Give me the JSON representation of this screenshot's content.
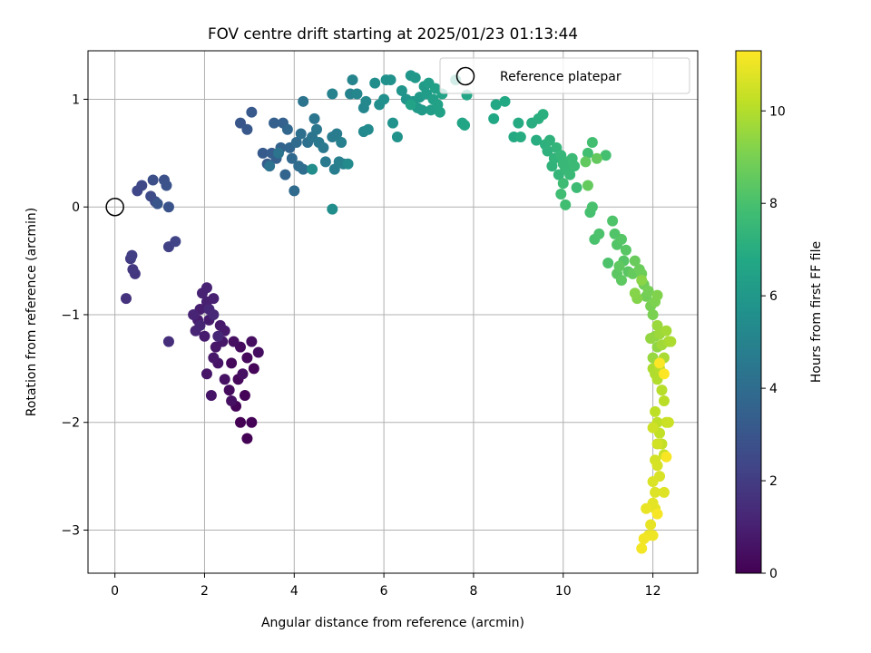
{
  "chart_data": {
    "type": "scatter",
    "title": "FOV centre drift starting at 2025/01/23 01:13:44",
    "xlabel": "Angular distance from reference (arcmin)",
    "ylabel": "Rotation from reference (arcmin)",
    "xlim": [
      -0.6,
      13.0
    ],
    "ylim": [
      -3.4,
      1.45
    ],
    "xticks": [
      0,
      2,
      4,
      6,
      8,
      10,
      12
    ],
    "yticks": [
      -3,
      -2,
      -1,
      0,
      1
    ],
    "grid": true,
    "colormap": "viridis",
    "colorbar": {
      "label": "Hours from first FF file",
      "range": [
        0,
        11.3
      ],
      "ticks": [
        0,
        2,
        4,
        6,
        8,
        10
      ]
    },
    "legend": {
      "position": "top-right",
      "entries": [
        {
          "label": "Reference platepar",
          "marker": "open-circle"
        }
      ]
    },
    "reference_point": {
      "x": 0,
      "y": 0
    },
    "segments": [
      {
        "hours": [
          0.0,
          0.6
        ],
        "points": [
          [
            2.8,
            -2.0
          ],
          [
            2.95,
            -2.15
          ],
          [
            3.05,
            -2.0
          ],
          [
            2.7,
            -1.85
          ],
          [
            2.9,
            -1.75
          ],
          [
            3.1,
            -1.5
          ],
          [
            2.75,
            -1.6
          ],
          [
            2.6,
            -1.45
          ],
          [
            2.95,
            -1.4
          ],
          [
            2.55,
            -1.7
          ],
          [
            2.8,
            -1.3
          ],
          [
            3.2,
            -1.35
          ],
          [
            3.05,
            -1.25
          ],
          [
            2.65,
            -1.25
          ],
          [
            2.85,
            -1.55
          ],
          [
            2.6,
            -1.8
          ],
          [
            2.45,
            -1.6
          ],
          [
            2.3,
            -1.45
          ]
        ]
      },
      {
        "hours": [
          0.6,
          1.3
        ],
        "points": [
          [
            2.15,
            -1.75
          ],
          [
            2.05,
            -1.55
          ],
          [
            2.25,
            -1.3
          ],
          [
            2.4,
            -1.25
          ],
          [
            2.2,
            -1.4
          ],
          [
            2.35,
            -1.1
          ],
          [
            2.45,
            -1.15
          ],
          [
            2.1,
            -1.05
          ],
          [
            2.0,
            -1.2
          ],
          [
            1.85,
            -1.05
          ],
          [
            1.9,
            -0.95
          ],
          [
            2.05,
            -0.88
          ],
          [
            2.2,
            -0.85
          ],
          [
            1.95,
            -0.8
          ],
          [
            2.05,
            -0.75
          ],
          [
            1.75,
            -1.0
          ],
          [
            1.8,
            -1.15
          ],
          [
            1.9,
            -1.1
          ],
          [
            2.1,
            -0.95
          ],
          [
            2.3,
            -1.2
          ],
          [
            2.2,
            -1.0
          ]
        ]
      },
      {
        "hours": [
          1.5,
          2.3
        ],
        "points": [
          [
            1.2,
            -1.25
          ],
          [
            0.25,
            -0.85
          ],
          [
            0.45,
            -0.62
          ],
          [
            0.4,
            -0.58
          ],
          [
            0.35,
            -0.48
          ],
          [
            0.38,
            -0.45
          ],
          [
            1.2,
            -0.37
          ],
          [
            1.35,
            -0.32
          ]
        ]
      },
      {
        "hours": [
          2.4,
          3.0
        ],
        "points": [
          [
            0.5,
            0.15
          ],
          [
            0.6,
            0.2
          ],
          [
            0.8,
            0.1
          ],
          [
            0.9,
            0.05
          ],
          [
            0.85,
            0.25
          ],
          [
            1.1,
            0.25
          ],
          [
            1.15,
            0.2
          ],
          [
            1.2,
            0.0
          ],
          [
            0.95,
            0.03
          ]
        ]
      },
      {
        "hours": [
          3.0,
          4.3
        ],
        "points": [
          [
            2.8,
            0.78
          ],
          [
            2.95,
            0.72
          ],
          [
            3.05,
            0.88
          ],
          [
            3.3,
            0.5
          ],
          [
            3.4,
            0.4
          ],
          [
            3.5,
            0.5
          ],
          [
            3.6,
            0.45
          ],
          [
            3.55,
            0.78
          ],
          [
            3.75,
            0.78
          ],
          [
            3.7,
            0.55
          ],
          [
            3.8,
            0.3
          ],
          [
            3.9,
            0.55
          ],
          [
            3.85,
            0.72
          ],
          [
            3.95,
            0.45
          ],
          [
            4.0,
            0.15
          ],
          [
            4.05,
            0.6
          ],
          [
            4.1,
            0.38
          ],
          [
            4.2,
            0.35
          ],
          [
            4.15,
            0.68
          ],
          [
            4.3,
            0.6
          ],
          [
            3.45,
            0.38
          ],
          [
            3.65,
            0.5
          ]
        ]
      },
      {
        "hours": [
          4.3,
          5.5
        ],
        "points": [
          [
            4.2,
            0.98
          ],
          [
            4.4,
            0.65
          ],
          [
            4.45,
            0.82
          ],
          [
            4.5,
            0.72
          ],
          [
            4.55,
            0.6
          ],
          [
            4.65,
            0.55
          ],
          [
            4.7,
            0.42
          ],
          [
            4.85,
            0.65
          ],
          [
            4.95,
            0.68
          ],
          [
            4.9,
            0.35
          ],
          [
            5.0,
            0.42
          ],
          [
            5.05,
            0.6
          ],
          [
            5.1,
            0.4
          ],
          [
            4.85,
            1.05
          ],
          [
            5.25,
            1.05
          ],
          [
            5.3,
            1.18
          ],
          [
            5.4,
            1.05
          ],
          [
            5.55,
            0.92
          ],
          [
            5.6,
            0.98
          ],
          [
            5.55,
            0.7
          ],
          [
            5.65,
            0.72
          ],
          [
            5.2,
            0.4
          ],
          [
            4.4,
            0.35
          ],
          [
            4.85,
            -0.02
          ]
        ]
      },
      {
        "hours": [
          5.5,
          6.5
        ],
        "points": [
          [
            5.8,
            1.15
          ],
          [
            5.9,
            0.95
          ],
          [
            6.0,
            1.0
          ],
          [
            6.05,
            1.18
          ],
          [
            6.15,
            1.18
          ],
          [
            6.2,
            0.78
          ],
          [
            6.3,
            0.65
          ],
          [
            6.4,
            1.08
          ],
          [
            6.5,
            1.0
          ],
          [
            6.6,
            1.22
          ],
          [
            6.65,
            0.98
          ],
          [
            6.7,
            1.2
          ],
          [
            6.75,
            0.92
          ],
          [
            6.8,
            1.02
          ],
          [
            6.85,
            0.9
          ],
          [
            6.9,
            1.12
          ],
          [
            6.95,
            1.05
          ],
          [
            7.0,
            1.15
          ],
          [
            7.05,
            0.9
          ],
          [
            7.1,
            1.0
          ],
          [
            7.15,
            1.1
          ],
          [
            7.2,
            0.95
          ],
          [
            7.25,
            0.88
          ],
          [
            6.6,
            0.95
          ]
        ]
      },
      {
        "hours": [
          6.5,
          7.5
        ],
        "points": [
          [
            7.3,
            1.05
          ],
          [
            7.6,
            1.18
          ],
          [
            7.75,
            0.78
          ],
          [
            7.8,
            0.76
          ],
          [
            7.85,
            1.04
          ],
          [
            8.45,
            0.82
          ],
          [
            8.5,
            0.95
          ],
          [
            8.7,
            0.98
          ],
          [
            8.9,
            0.65
          ],
          [
            9.0,
            0.78
          ],
          [
            9.05,
            0.65
          ],
          [
            9.3,
            0.78
          ],
          [
            9.4,
            0.62
          ],
          [
            9.45,
            0.82
          ],
          [
            9.55,
            0.86
          ],
          [
            9.6,
            0.58
          ],
          [
            9.65,
            0.52
          ],
          [
            9.7,
            0.62
          ],
          [
            9.75,
            0.38
          ],
          [
            9.8,
            0.45
          ],
          [
            9.85,
            0.55
          ],
          [
            9.9,
            0.3
          ],
          [
            9.95,
            0.48
          ],
          [
            10.0,
            0.4
          ]
        ]
      },
      {
        "hours": [
          7.5,
          8.6
        ],
        "points": [
          [
            10.05,
            0.35
          ],
          [
            10.1,
            0.42
          ],
          [
            10.15,
            0.3
          ],
          [
            10.2,
            0.45
          ],
          [
            10.25,
            0.38
          ],
          [
            10.3,
            0.18
          ],
          [
            10.0,
            0.22
          ],
          [
            9.95,
            0.12
          ],
          [
            10.05,
            0.02
          ],
          [
            10.55,
            0.5
          ],
          [
            10.65,
            0.6
          ],
          [
            10.95,
            0.48
          ],
          [
            10.6,
            -0.05
          ],
          [
            10.65,
            0.0
          ],
          [
            10.7,
            -0.3
          ],
          [
            10.8,
            -0.25
          ],
          [
            11.0,
            -0.52
          ],
          [
            11.1,
            -0.13
          ],
          [
            11.15,
            -0.25
          ],
          [
            11.2,
            -0.35
          ],
          [
            11.3,
            -0.3
          ],
          [
            11.35,
            -0.5
          ],
          [
            11.4,
            -0.4
          ],
          [
            11.45,
            -0.6
          ],
          [
            11.2,
            -0.62
          ],
          [
            11.3,
            -0.68
          ],
          [
            11.25,
            -0.55
          ],
          [
            10.5,
            0.42
          ],
          [
            10.75,
            0.45
          ],
          [
            10.55,
            0.2
          ]
        ]
      },
      {
        "hours": [
          8.6,
          9.9
        ],
        "points": [
          [
            11.55,
            -0.62
          ],
          [
            11.6,
            -0.5
          ],
          [
            11.7,
            -0.58
          ],
          [
            11.75,
            -0.62
          ],
          [
            11.8,
            -0.72
          ],
          [
            11.85,
            -0.83
          ],
          [
            11.9,
            -0.78
          ],
          [
            11.95,
            -0.92
          ],
          [
            12.0,
            -1.0
          ],
          [
            12.05,
            -0.88
          ],
          [
            12.1,
            -0.82
          ],
          [
            11.65,
            -0.85
          ],
          [
            11.6,
            -0.8
          ],
          [
            11.75,
            -0.68
          ],
          [
            12.05,
            -1.2
          ],
          [
            12.1,
            -1.3
          ],
          [
            11.95,
            -1.22
          ],
          [
            12.0,
            -1.4
          ],
          [
            12.1,
            -1.1
          ],
          [
            12.15,
            -1.18
          ],
          [
            12.2,
            -1.28
          ],
          [
            12.3,
            -1.15
          ],
          [
            12.35,
            -1.25
          ],
          [
            12.25,
            -1.4
          ],
          [
            12.4,
            -1.25
          ]
        ]
      },
      {
        "hours": [
          9.9,
          11.3
        ],
        "points": [
          [
            12.0,
            -1.5
          ],
          [
            12.05,
            -1.55
          ],
          [
            12.1,
            -1.6
          ],
          [
            12.15,
            -1.5
          ],
          [
            12.2,
            -1.7
          ],
          [
            12.25,
            -1.8
          ],
          [
            12.05,
            -1.9
          ],
          [
            12.1,
            -2.0
          ],
          [
            12.15,
            -2.1
          ],
          [
            12.2,
            -2.2
          ],
          [
            12.25,
            -2.3
          ],
          [
            12.3,
            -2.0
          ],
          [
            12.35,
            -2.0
          ],
          [
            12.0,
            -2.05
          ],
          [
            12.1,
            -2.2
          ],
          [
            12.05,
            -2.35
          ],
          [
            12.1,
            -2.4
          ],
          [
            12.15,
            -2.5
          ],
          [
            12.0,
            -2.55
          ],
          [
            12.05,
            -2.65
          ],
          [
            12.25,
            -2.65
          ],
          [
            12.0,
            -2.75
          ],
          [
            12.05,
            -2.8
          ],
          [
            11.95,
            -2.95
          ],
          [
            11.85,
            -2.8
          ],
          [
            11.9,
            -3.05
          ],
          [
            12.0,
            -3.05
          ],
          [
            11.8,
            -3.08
          ],
          [
            11.75,
            -3.17
          ],
          [
            12.1,
            -2.85
          ],
          [
            12.3,
            -2.32
          ],
          [
            12.15,
            -1.45
          ],
          [
            12.25,
            -1.55
          ]
        ]
      }
    ]
  }
}
